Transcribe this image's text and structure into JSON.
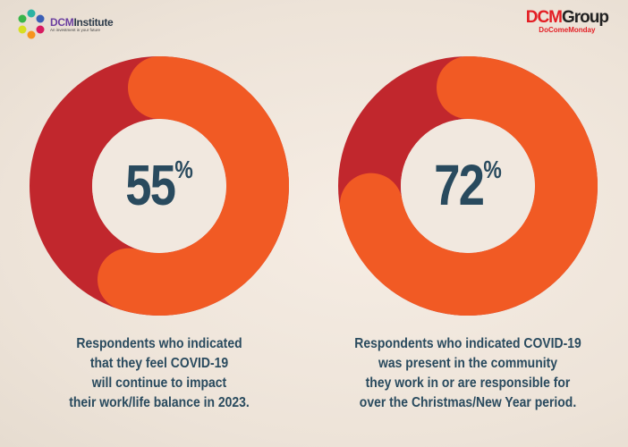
{
  "logos": {
    "left": {
      "name_a": "DCM",
      "name_b": "Institute",
      "tagline": "An investment in your future"
    },
    "right": {
      "name_a": "DCM",
      "name_b": "Group",
      "tagline": "DoComeMonday"
    }
  },
  "colors": {
    "filled": "#f15a24",
    "remaining": "#c1272d",
    "text": "#294a5e",
    "background": "#efe6dc"
  },
  "chart_data": [
    {
      "type": "pie",
      "variant": "donut",
      "value": 55,
      "unit": "%",
      "label_number": "55",
      "label_unit": "%",
      "caption": [
        "Respondents who indicated",
        "that they feel COVID-19",
        "will continue to impact",
        "their work/life balance in 2023."
      ]
    },
    {
      "type": "pie",
      "variant": "donut",
      "value": 72,
      "unit": "%",
      "label_number": "72",
      "label_unit": "%",
      "caption": [
        "Respondents who indicated COVID-19",
        "was present in the community",
        "they work in or are responsible for",
        "over the Christmas/New Year period."
      ]
    }
  ]
}
